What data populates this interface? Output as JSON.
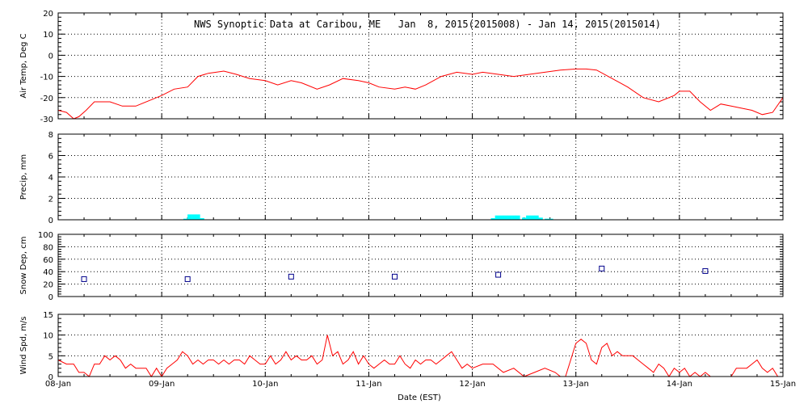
{
  "figure": {
    "title": "NWS Synoptic Data at Caribou, ME   Jan  8, 2015(2015008) - Jan 14, 2015(2015014)",
    "xlabel": "Date (EST)",
    "x_ticks": [
      "08-Jan",
      "09-Jan",
      "10-Jan",
      "11-Jan",
      "12-Jan",
      "13-Jan",
      "14-Jan",
      "15-Jan"
    ],
    "x_range_days": [
      0,
      7
    ],
    "colors": {
      "line": "#ff0000",
      "precip": "#00ffff",
      "snow_marker": "#00008b",
      "frame": "#000000"
    }
  },
  "chart_data": [
    {
      "type": "line",
      "ylabel": "Air Temp, Deg C",
      "ylim": [
        -30,
        20
      ],
      "y_ticks": [
        "-30",
        "-20",
        "-10",
        "0",
        "10",
        "20"
      ],
      "y_tick_values": [
        -30,
        -20,
        -10,
        0,
        10,
        20
      ],
      "grid": true,
      "series": [
        {
          "x": [
            0,
            0.08,
            0.15,
            0.2,
            0.27,
            0.35,
            0.5,
            0.62,
            0.75,
            0.9,
            1.0,
            1.12,
            1.25,
            1.35,
            1.45,
            1.6,
            1.72,
            1.85,
            2.0,
            2.12,
            2.25,
            2.35,
            2.5,
            2.62,
            2.75,
            2.9,
            3.0,
            3.1,
            3.25,
            3.35,
            3.45,
            3.55,
            3.7,
            3.85,
            4.0,
            4.1,
            4.25,
            4.4,
            4.55,
            4.7,
            4.85,
            5.0,
            5.1,
            5.2,
            5.35,
            5.5,
            5.65,
            5.8,
            5.95,
            6.0,
            6.1,
            6.2,
            6.3,
            6.4,
            6.5,
            6.6,
            6.7,
            6.8,
            6.9,
            7.0
          ],
          "values": [
            -26,
            -27,
            -30,
            -29,
            -26,
            -22,
            -22,
            -24,
            -24,
            -21,
            -19,
            -16,
            -15,
            -10,
            -8.5,
            -7.5,
            -9,
            -11,
            -12,
            -14,
            -12,
            -13,
            -16,
            -14,
            -11,
            -12,
            -13,
            -15,
            -16,
            -15,
            -16,
            -14,
            -10,
            -8,
            -9,
            -8,
            -9,
            -10,
            -9,
            -8,
            -7,
            -6.5,
            -6.5,
            -7,
            -11,
            -15,
            -20,
            -22,
            -19,
            -17,
            -17,
            -22,
            -26,
            -23,
            -24,
            -25,
            -26,
            -28,
            -27,
            -20
          ]
        }
      ]
    },
    {
      "type": "bar",
      "ylabel": "Precip, mm",
      "ylim": [
        0,
        8
      ],
      "y_ticks": [
        "0",
        "2",
        "4",
        "6",
        "8"
      ],
      "y_tick_values": [
        0,
        2,
        4,
        6,
        8
      ],
      "grid": true,
      "bar_width_days": 0.0417,
      "series": [
        {
          "x": [
            1.23,
            1.27,
            1.31,
            1.35,
            1.39,
            4.2,
            4.24,
            4.28,
            4.32,
            4.36,
            4.4,
            4.44,
            4.5,
            4.54,
            4.58,
            4.62,
            4.66,
            4.72,
            4.76
          ],
          "values": [
            0.1,
            0.5,
            0.5,
            0.5,
            0.15,
            0.15,
            0.4,
            0.4,
            0.4,
            0.4,
            0.4,
            0.4,
            0.2,
            0.4,
            0.4,
            0.4,
            0.2,
            0.1,
            0.1
          ]
        }
      ]
    },
    {
      "type": "scatter",
      "ylabel": "Snow Dep, cm",
      "ylim": [
        0,
        100
      ],
      "y_ticks": [
        "0",
        "20",
        "40",
        "60",
        "80",
        "100"
      ],
      "y_tick_values": [
        0,
        20,
        40,
        60,
        80,
        100
      ],
      "grid": true,
      "series": [
        {
          "x": [
            0.25,
            1.25,
            2.25,
            3.25,
            4.25,
            5.25,
            6.25
          ],
          "values": [
            28,
            28,
            32,
            32,
            35,
            45,
            41
          ]
        }
      ]
    },
    {
      "type": "line",
      "ylabel": "Wind Spd, m/s",
      "ylim": [
        0,
        15
      ],
      "y_ticks": [
        "0",
        "5",
        "10",
        "15"
      ],
      "y_tick_values": [
        0,
        5,
        10,
        15
      ],
      "grid": true,
      "series": [
        {
          "x": [
            0,
            0.08,
            0.15,
            0.2,
            0.25,
            0.3,
            0.35,
            0.4,
            0.45,
            0.5,
            0.55,
            0.6,
            0.65,
            0.7,
            0.75,
            0.8,
            0.85,
            0.9,
            0.95,
            1.0,
            1.05,
            1.1,
            1.15,
            1.2,
            1.25,
            1.3,
            1.35,
            1.4,
            1.45,
            1.5,
            1.55,
            1.6,
            1.65,
            1.7,
            1.75,
            1.8,
            1.85,
            1.9,
            1.95,
            2.0,
            2.05,
            2.1,
            2.15,
            2.2,
            2.25,
            2.3,
            2.35,
            2.4,
            2.45,
            2.5,
            2.55,
            2.6,
            2.65,
            2.7,
            2.75,
            2.8,
            2.85,
            2.9,
            2.95,
            3.0,
            3.05,
            3.1,
            3.15,
            3.2,
            3.25,
            3.3,
            3.35,
            3.4,
            3.45,
            3.5,
            3.55,
            3.6,
            3.65,
            3.7,
            3.75,
            3.8,
            3.85,
            3.9,
            3.95,
            4.0,
            4.1,
            4.2,
            4.3,
            4.4,
            4.5,
            4.6,
            4.7,
            4.8,
            4.85,
            4.9,
            4.95,
            5.0,
            5.05,
            5.1,
            5.15,
            5.2,
            5.25,
            5.3,
            5.35,
            5.4,
            5.45,
            5.5,
            5.55,
            5.6,
            5.65,
            5.7,
            5.75,
            5.8,
            5.85,
            5.9,
            5.95,
            6.0,
            6.05,
            6.1,
            6.15,
            6.2,
            6.25,
            6.3,
            6.35,
            6.4,
            6.45,
            6.5,
            6.55,
            6.6,
            6.65,
            6.7,
            6.75,
            6.8,
            6.85,
            6.9,
            6.95,
            7.0
          ],
          "values": [
            4,
            3,
            3,
            1,
            1,
            0,
            3,
            3,
            5,
            4,
            5,
            4,
            2,
            3,
            2,
            2,
            2,
            0,
            2,
            0,
            2,
            3,
            4,
            6,
            5,
            3,
            4,
            3,
            4,
            4,
            3,
            4,
            3,
            4,
            4,
            3,
            5,
            4,
            3,
            3,
            5,
            3,
            4,
            6,
            4,
            5,
            4,
            4,
            5,
            3,
            4,
            10,
            5,
            6,
            3,
            4,
            6,
            3,
            5,
            3,
            2,
            3,
            4,
            3,
            3,
            5,
            3,
            2,
            4,
            3,
            4,
            4,
            3,
            4,
            5,
            6,
            4,
            2,
            3,
            2,
            3,
            3,
            1,
            2,
            0,
            1,
            2,
            1,
            0,
            0,
            4,
            8,
            9,
            8,
            4,
            3,
            7,
            8,
            5,
            6,
            5,
            5,
            5,
            4,
            3,
            2,
            1,
            3,
            2,
            0,
            2,
            1,
            2,
            0,
            1,
            0,
            1,
            0,
            0,
            0,
            0,
            0,
            2,
            2,
            2,
            3,
            4,
            2,
            1,
            2,
            0,
            0
          ]
        }
      ]
    }
  ]
}
